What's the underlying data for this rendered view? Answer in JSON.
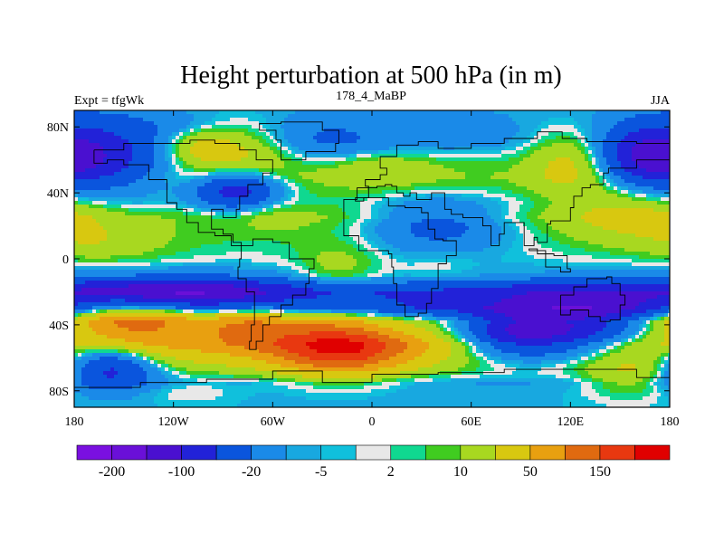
{
  "chart_data": {
    "type": "heatmap",
    "title": "Height perturbation at 500 hPa (in m)",
    "left_string": "Expt = tfgWk",
    "center_string": "178_4_MaBP",
    "right_string": "JJA",
    "xlim": [
      -180,
      180
    ],
    "ylim": [
      -90,
      90
    ],
    "x_ticks": [
      {
        "value": -180,
        "label": "180"
      },
      {
        "value": -120,
        "label": "120W"
      },
      {
        "value": -60,
        "label": "60W"
      },
      {
        "value": 0,
        "label": "0"
      },
      {
        "value": 60,
        "label": "60E"
      },
      {
        "value": 120,
        "label": "120E"
      },
      {
        "value": 180,
        "label": "180"
      }
    ],
    "y_ticks": [
      {
        "value": 80,
        "label": "80N"
      },
      {
        "value": 40,
        "label": "40N"
      },
      {
        "value": 0,
        "label": "0"
      },
      {
        "value": -40,
        "label": "40S"
      },
      {
        "value": -80,
        "label": "80S"
      }
    ],
    "colorbar": {
      "colors": [
        "#7a10e0",
        "#6a10d8",
        "#4a10d0",
        "#2222d8",
        "#0a55dd",
        "#1a8ae8",
        "#18a8e0",
        "#10c0dc",
        "#e8e8e8",
        "#10d890",
        "#40cc20",
        "#a8d820",
        "#d8c810",
        "#e8a010",
        "#e06a10",
        "#e83810",
        "#e00000"
      ],
      "labels": [
        {
          "after_box": 1,
          "text": "-200"
        },
        {
          "after_box": 3,
          "text": "-100"
        },
        {
          "after_box": 5,
          "text": "-20"
        },
        {
          "after_box": 7,
          "text": "-5"
        },
        {
          "after_box": 9,
          "text": "2"
        },
        {
          "after_box": 11,
          "text": "10"
        },
        {
          "after_box": 13,
          "text": "50"
        },
        {
          "after_box": 15,
          "text": "150"
        }
      ]
    },
    "features": [
      {
        "lon": -160,
        "lat": 58,
        "w": 40,
        "h": 26,
        "v": -120
      },
      {
        "lon": -162,
        "lat": 38,
        "w": 38,
        "h": 14,
        "v": 25
      },
      {
        "lon": -170,
        "lat": 15,
        "w": 22,
        "h": 12,
        "v": 15
      },
      {
        "lon": -155,
        "lat": 8,
        "w": 40,
        "h": 12,
        "v": 25
      },
      {
        "lon": -85,
        "lat": 65,
        "w": 40,
        "h": 18,
        "v": 70
      },
      {
        "lon": -105,
        "lat": 70,
        "w": 20,
        "h": 10,
        "v": 40
      },
      {
        "lon": -110,
        "lat": 80,
        "w": 30,
        "h": 8,
        "v": -25
      },
      {
        "lon": -82,
        "lat": 42,
        "w": 26,
        "h": 12,
        "v": -140
      },
      {
        "lon": -60,
        "lat": 28,
        "w": 20,
        "h": 10,
        "v": 15
      },
      {
        "lon": -30,
        "lat": 72,
        "w": 40,
        "h": 14,
        "v": -50
      },
      {
        "lon": 5,
        "lat": 55,
        "w": 30,
        "h": 10,
        "v": 40
      },
      {
        "lon": -15,
        "lat": 35,
        "w": 30,
        "h": 10,
        "v": 6
      },
      {
        "lon": 50,
        "lat": 75,
        "w": 40,
        "h": 12,
        "v": -30
      },
      {
        "lon": 55,
        "lat": 62,
        "w": 30,
        "h": 10,
        "v": 8
      },
      {
        "lon": 120,
        "lat": 60,
        "w": 25,
        "h": 18,
        "v": 60
      },
      {
        "lon": 165,
        "lat": 60,
        "w": 30,
        "h": 20,
        "v": -140
      },
      {
        "lon": 160,
        "lat": 30,
        "w": 40,
        "h": 20,
        "v": 60
      },
      {
        "lon": 40,
        "lat": 20,
        "w": 45,
        "h": 16,
        "v": -80
      },
      {
        "lon": 105,
        "lat": 10,
        "w": 60,
        "h": 14,
        "v": 0
      },
      {
        "lon": -20,
        "lat": -5,
        "w": 25,
        "h": 15,
        "v": 35
      },
      {
        "lon": -110,
        "lat": -8,
        "w": 40,
        "h": 10,
        "v": 0
      },
      {
        "lon": 80,
        "lat": -20,
        "w": 40,
        "h": 10,
        "v": -25
      },
      {
        "lon": 40,
        "lat": -5,
        "w": 25,
        "h": 10,
        "v": 12
      },
      {
        "lon": -120,
        "lat": -20,
        "w": 70,
        "h": 10,
        "v": -140
      },
      {
        "lon": -145,
        "lat": -35,
        "w": 40,
        "h": 14,
        "v": 110
      },
      {
        "lon": -20,
        "lat": -55,
        "w": 40,
        "h": 16,
        "v": 180
      },
      {
        "lon": -75,
        "lat": -40,
        "w": 30,
        "h": 14,
        "v": 70
      },
      {
        "lon": 90,
        "lat": -45,
        "w": 40,
        "h": 16,
        "v": -230
      },
      {
        "lon": 140,
        "lat": -40,
        "w": 40,
        "h": 20,
        "v": -140
      },
      {
        "lon": 20,
        "lat": -35,
        "w": 40,
        "h": 14,
        "v": -40
      },
      {
        "lon": -160,
        "lat": -65,
        "w": 30,
        "h": 14,
        "v": -140
      },
      {
        "lon": 120,
        "lat": -72,
        "w": 60,
        "h": 14,
        "v": 8
      },
      {
        "lon": 160,
        "lat": -70,
        "w": 30,
        "h": 14,
        "v": 60
      },
      {
        "lon": -120,
        "lat": -80,
        "w": 40,
        "h": 8,
        "v": 20
      }
    ]
  }
}
